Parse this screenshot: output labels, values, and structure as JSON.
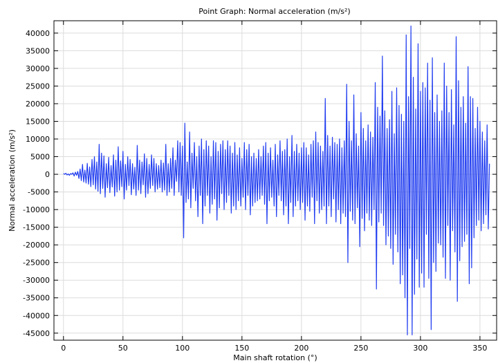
{
  "chart_data": {
    "type": "line",
    "title": "Point Graph: Normal acceleration (m/s²)",
    "xlabel": "Main shaft rotation (°)",
    "ylabel": "Normal acceleration (m/s²)",
    "xlim": [
      -8,
      364
    ],
    "ylim": [
      -47000,
      43500
    ],
    "x_ticks": [
      0,
      50,
      100,
      150,
      200,
      250,
      300,
      350
    ],
    "y_ticks": [
      40000,
      35000,
      30000,
      25000,
      20000,
      15000,
      10000,
      5000,
      0,
      -5000,
      -10000,
      -15000,
      -20000,
      -25000,
      -30000,
      -35000,
      -40000,
      -45000
    ],
    "grid": true,
    "legend": "none",
    "series": [
      {
        "color": "#1f3cf0",
        "x_start": 0,
        "x_step": 1,
        "values": [
          200,
          0,
          300,
          -200,
          100,
          -300,
          200,
          0,
          400,
          -500,
          600,
          -300,
          800,
          -1200,
          1500,
          -1800,
          2800,
          -2200,
          1200,
          -2500,
          3100,
          -2800,
          2100,
          -3500,
          4200,
          -3000,
          5000,
          -4200,
          3500,
          -4800,
          8500,
          -5500,
          6000,
          -4000,
          5200,
          -6500,
          3000,
          -3800,
          4800,
          -5200,
          2500,
          -3600,
          5500,
          -6200,
          4000,
          -5000,
          7800,
          -4500,
          3800,
          -3500,
          6500,
          -7000,
          2800,
          -4500,
          5000,
          -3200,
          4200,
          -5800,
          3000,
          -4200,
          2000,
          -6000,
          8200,
          -4500,
          4000,
          -5500,
          3500,
          -3000,
          5800,
          -6500,
          4500,
          -5500,
          2800,
          -4000,
          5500,
          -3200,
          4500,
          -5000,
          3000,
          -4200,
          2500,
          -3800,
          4000,
          -5000,
          3200,
          -4500,
          8500,
          -6000,
          3000,
          -5000,
          4500,
          -4000,
          7500,
          -6000,
          4000,
          -2000,
          9500,
          -5000,
          9000,
          -6000,
          8000,
          -18000,
          14500,
          -8000,
          3500,
          -7000,
          12000,
          -9500,
          6000,
          -4000,
          9000,
          -7500,
          5000,
          -12000,
          8000,
          -6000,
          10000,
          -14000,
          7000,
          -9000,
          9500,
          -6000,
          8000,
          -11000,
          5000,
          -8500,
          9500,
          -7000,
          9000,
          -13000,
          6500,
          -9500,
          8500,
          -5500,
          9500,
          -10000,
          7000,
          -8000,
          9500,
          -6000,
          8000,
          -11000,
          6000,
          -9000,
          9000,
          -10000,
          5500,
          -7500,
          7500,
          -9000,
          4500,
          -6500,
          9000,
          -10000,
          7000,
          -6000,
          8500,
          -11500,
          5000,
          -9000,
          6000,
          -8000,
          4500,
          -7500,
          7000,
          -7000,
          5000,
          -6000,
          8000,
          -8500,
          9000,
          -14000,
          6000,
          -7500,
          7500,
          -6500,
          4000,
          -9000,
          8500,
          -12000,
          5500,
          -6000,
          9500,
          -7500,
          6500,
          -11500,
          7000,
          -9000,
          10000,
          -14000,
          5000,
          -8000,
          11000,
          -12000,
          6500,
          -9000,
          8500,
          -7500,
          6000,
          -10000,
          7500,
          -8000,
          9000,
          -13000,
          7500,
          -9000,
          5500,
          -10500,
          8500,
          -6500,
          9500,
          -14000,
          12000,
          -7500,
          9000,
          -11000,
          8000,
          -10000,
          6500,
          -9000,
          21500,
          -14000,
          11000,
          -9000,
          8000,
          -12000,
          10500,
          -7000,
          9000,
          -13500,
          8500,
          -10000,
          10000,
          -14000,
          7500,
          -11000,
          9500,
          -12000,
          25500,
          -25000,
          15000,
          -10500,
          9500,
          -13000,
          22500,
          -14000,
          11500,
          -9500,
          8000,
          -20500,
          17500,
          -12500,
          13000,
          -16000,
          9500,
          -11000,
          14000,
          -13000,
          12000,
          -14500,
          10500,
          -10000,
          26000,
          -32500,
          19000,
          -13500,
          16500,
          -11000,
          33500,
          -14500,
          18000,
          -20000,
          13000,
          -17500,
          15500,
          -21000,
          23500,
          -25500,
          11500,
          -17000,
          24500,
          -22000,
          19500,
          -31000,
          17000,
          -28500,
          15000,
          -35000,
          39500,
          -45500,
          22000,
          -21000,
          42000,
          -45500,
          27500,
          -34000,
          18500,
          -24000,
          37000,
          -32000,
          23500,
          -28000,
          26000,
          -32000,
          24500,
          -17000,
          31500,
          -29500,
          21000,
          -44000,
          33000,
          -25000,
          17500,
          -27500,
          22500,
          -19500,
          15000,
          -20000,
          18000,
          -23500,
          31500,
          -29500,
          25000,
          -14500,
          17500,
          -30000,
          24000,
          -16000,
          14000,
          -22000,
          39000,
          -36000,
          26500,
          -24500,
          19000,
          -20500,
          22000,
          -19000,
          14500,
          -17000,
          30500,
          -31000,
          22000,
          -26500,
          21500,
          -18000,
          13000,
          -14500,
          19000,
          -13000,
          15000,
          -16000,
          12000,
          -14000,
          9500,
          -11500,
          14000,
          -15500,
          3000
        ]
      }
    ]
  }
}
